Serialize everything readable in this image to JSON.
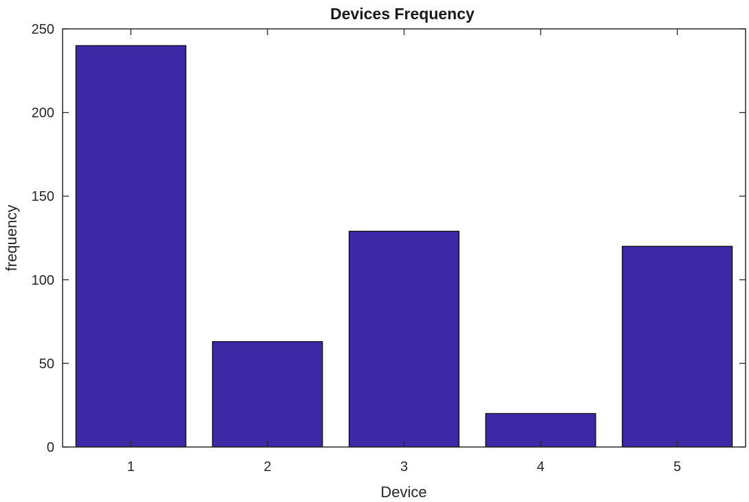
{
  "chart_data": {
    "type": "bar",
    "title": "Devices Frequency",
    "xlabel": "Device",
    "ylabel": "frequency",
    "categories": [
      "1",
      "2",
      "3",
      "4",
      "5"
    ],
    "values": [
      240,
      63,
      129,
      20,
      120
    ],
    "ylim": [
      0,
      250
    ],
    "yticks": [
      "0",
      "50",
      "100",
      "150",
      "200",
      "250"
    ],
    "grid": false,
    "legend": "none",
    "bar_color": "#3d28a6",
    "bar_edge_color": "#000000"
  }
}
